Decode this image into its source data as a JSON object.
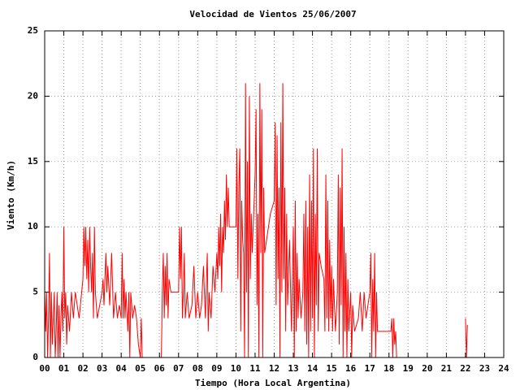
{
  "chart_data": {
    "type": "line",
    "title": "Velocidad de Vientos 25/06/2007",
    "x_label": "Tiempo (Hora Local Argentina)",
    "y_label": "Viento (Km/h)",
    "xlim": [
      0,
      24
    ],
    "ylim": [
      0,
      25
    ],
    "xticks": [
      {
        "value": 0,
        "label": "00"
      },
      {
        "value": 1,
        "label": "01"
      },
      {
        "value": 2,
        "label": "02"
      },
      {
        "value": 3,
        "label": "03"
      },
      {
        "value": 4,
        "label": "04"
      },
      {
        "value": 5,
        "label": "05"
      },
      {
        "value": 6,
        "label": "06"
      },
      {
        "value": 7,
        "label": "07"
      },
      {
        "value": 8,
        "label": "08"
      },
      {
        "value": 9,
        "label": "09"
      },
      10,
      11,
      12,
      13,
      14,
      15,
      16,
      17,
      18,
      19,
      20,
      21,
      22,
      23,
      24
    ],
    "yticks": [
      0,
      5,
      10,
      15,
      20,
      25
    ],
    "grid": true,
    "series": [
      {
        "color": "#ff0000",
        "x": [
          0.0,
          0.05,
          0.1,
          0.15,
          0.2,
          0.25,
          0.3,
          0.35,
          0.4,
          0.45,
          0.5,
          0.55,
          0.6,
          0.65,
          0.7,
          0.75,
          0.8,
          0.85,
          0.9,
          0.95,
          1.0,
          1.05,
          1.1,
          1.15,
          1.2,
          1.3,
          1.4,
          1.5,
          1.6,
          1.7,
          1.8,
          2.0,
          2.05,
          2.1,
          2.15,
          2.2,
          2.25,
          2.3,
          2.35,
          2.4,
          2.45,
          2.5,
          2.55,
          2.6,
          2.65,
          2.75,
          3.0,
          3.05,
          3.1,
          3.2,
          3.25,
          3.3,
          3.4,
          3.5,
          3.6,
          3.7,
          3.8,
          3.9,
          4.0,
          4.05,
          4.1,
          4.15,
          4.2,
          4.25,
          4.35,
          4.4,
          4.45,
          4.5,
          4.6,
          4.7,
          4.8,
          4.9,
          5.0,
          5.05,
          5.1,
          6.1,
          6.15,
          6.2,
          6.25,
          6.3,
          6.35,
          6.4,
          6.45,
          6.5,
          6.6,
          6.8,
          7.0,
          7.05,
          7.1,
          7.15,
          7.2,
          7.25,
          7.3,
          7.35,
          7.45,
          7.55,
          7.7,
          7.8,
          7.9,
          8.0,
          8.1,
          8.2,
          8.3,
          8.4,
          8.5,
          8.55,
          8.6,
          8.7,
          8.8,
          8.9,
          9.0,
          9.05,
          9.1,
          9.15,
          9.2,
          9.25,
          9.3,
          9.35,
          9.4,
          9.45,
          9.5,
          9.55,
          9.6,
          9.65,
          9.8,
          10.0,
          10.05,
          10.1,
          10.15,
          10.2,
          10.25,
          10.3,
          10.35,
          10.4,
          10.45,
          10.5,
          10.55,
          10.6,
          10.65,
          10.7,
          10.75,
          10.8,
          10.85,
          11.0,
          11.05,
          11.1,
          11.15,
          11.2,
          11.25,
          11.3,
          11.35,
          11.4,
          11.45,
          11.5,
          11.6,
          11.8,
          12.0,
          12.05,
          12.1,
          12.15,
          12.2,
          12.25,
          12.3,
          12.35,
          12.4,
          12.45,
          12.5,
          12.55,
          12.6,
          12.65,
          12.7,
          12.8,
          12.9,
          13.0,
          13.05,
          13.1,
          13.15,
          13.2,
          13.25,
          13.3,
          13.4,
          13.5,
          13.55,
          13.6,
          13.65,
          13.7,
          13.75,
          13.8,
          13.85,
          13.9,
          13.95,
          14.0,
          14.05,
          14.1,
          14.15,
          14.2,
          14.25,
          14.3,
          14.35,
          14.45,
          14.6,
          14.65,
          14.7,
          14.75,
          14.8,
          14.85,
          14.9,
          14.95,
          15.0,
          15.05,
          15.1,
          15.2,
          15.3,
          15.35,
          15.4,
          15.45,
          15.5,
          15.55,
          15.6,
          15.65,
          15.7,
          15.75,
          15.8,
          15.85,
          15.9,
          16.0,
          16.05,
          16.1,
          16.2,
          16.4,
          16.5,
          16.6,
          16.7,
          16.8,
          17.0,
          17.05,
          17.1,
          17.15,
          17.2,
          17.25,
          17.3,
          17.35,
          17.4,
          17.5,
          17.7,
          17.9,
          18.1,
          18.15,
          18.2,
          18.25,
          18.3,
          18.35,
          18.4,
          20.0,
          22.0,
          22.05,
          22.1
        ],
        "values": [
          5,
          2,
          5,
          0,
          3,
          8,
          0,
          5,
          1,
          3,
          5,
          0,
          2,
          5,
          0,
          4,
          0,
          3,
          5,
          2,
          10,
          3,
          5,
          1,
          4,
          2,
          5,
          3,
          5,
          4,
          3,
          6,
          10,
          7,
          10,
          6,
          9,
          5,
          10,
          7,
          5,
          8,
          3,
          10,
          5,
          3,
          5,
          6,
          4,
          8,
          5,
          7,
          4,
          8,
          3,
          5,
          3,
          4,
          3,
          8,
          3,
          6,
          3,
          5,
          2,
          5,
          0,
          5,
          3,
          4,
          3,
          1,
          0,
          3,
          0,
          0,
          5,
          8,
          3,
          7,
          4,
          8,
          3,
          6,
          5,
          5,
          5,
          10,
          6,
          10,
          3,
          5,
          8,
          3,
          5,
          3,
          4,
          7,
          3,
          5,
          3,
          4,
          7,
          3,
          8,
          2,
          5,
          3,
          7,
          5,
          8,
          6,
          10,
          7,
          11,
          5,
          10,
          8,
          12,
          9,
          14,
          10,
          13,
          10,
          10,
          10,
          16,
          6,
          13,
          16,
          2,
          12,
          9,
          8,
          0,
          21,
          5,
          15,
          0,
          20,
          6,
          11,
          8,
          14,
          19,
          4,
          11,
          0,
          21,
          8,
          19,
          0,
          13,
          8,
          9,
          11,
          12,
          18,
          4,
          17,
          6,
          13,
          0,
          18,
          5,
          21,
          6,
          13,
          2,
          11,
          4,
          9,
          2,
          10,
          0,
          12,
          2,
          8,
          3,
          6,
          3,
          5,
          11,
          2,
          12,
          1,
          10,
          0,
          14,
          2,
          12,
          3,
          16,
          0,
          11,
          4,
          16,
          2,
          8,
          7,
          6,
          2,
          14,
          3,
          12,
          2,
          9,
          3,
          7,
          2,
          6,
          2,
          5,
          14,
          1,
          13,
          4,
          16,
          0,
          10,
          2,
          8,
          0,
          6,
          2,
          5,
          0,
          4,
          2,
          3,
          5,
          2,
          5,
          3,
          5,
          8,
          0,
          6,
          2,
          8,
          0,
          5,
          2,
          2,
          2,
          2,
          2,
          3,
          0,
          3,
          1,
          2,
          0,
          null,
          3,
          0,
          2.5
        ]
      }
    ]
  }
}
